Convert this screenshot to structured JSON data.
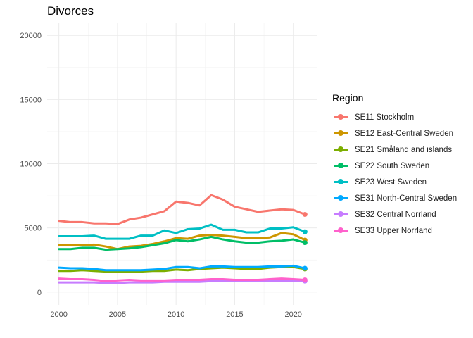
{
  "chart_data": {
    "type": "line",
    "title": "Divorces",
    "xlabel": "",
    "ylabel": "",
    "xlim": [
      2000,
      2021
    ],
    "ylim": [
      0,
      20000
    ],
    "x_ticks": [
      2000,
      2005,
      2010,
      2015,
      2020
    ],
    "y_ticks": [
      0,
      5000,
      10000,
      15000,
      20000
    ],
    "grid": true,
    "legend_title": "Region",
    "legend_position": "right",
    "x": [
      2000,
      2001,
      2002,
      2003,
      2004,
      2005,
      2006,
      2007,
      2008,
      2009,
      2010,
      2011,
      2012,
      2013,
      2014,
      2015,
      2016,
      2017,
      2018,
      2019,
      2020,
      2021
    ],
    "series": [
      {
        "name": "SE11 Stockholm",
        "color": "#F8766D",
        "values": [
          5550,
          5450,
          5450,
          5350,
          5350,
          5300,
          5650,
          5800,
          6050,
          6300,
          7050,
          6950,
          6750,
          7550,
          7200,
          6650,
          6450,
          6250,
          6350,
          6450,
          6400,
          6050
        ]
      },
      {
        "name": "SE12 East-Central Sweden",
        "color": "#CD9600",
        "values": [
          3650,
          3650,
          3650,
          3700,
          3550,
          3350,
          3550,
          3600,
          3750,
          3950,
          4200,
          4150,
          4400,
          4450,
          4400,
          4300,
          4200,
          4200,
          4250,
          4600,
          4500,
          4050
        ]
      },
      {
        "name": "SE21 Småland and islands",
        "color": "#7CAE00",
        "values": [
          1650,
          1650,
          1700,
          1650,
          1600,
          1600,
          1600,
          1600,
          1650,
          1650,
          1750,
          1700,
          1800,
          1850,
          1900,
          1850,
          1800,
          1800,
          1900,
          1950,
          1950,
          1800
        ]
      },
      {
        "name": "SE22 South Sweden",
        "color": "#00BE67",
        "values": [
          3350,
          3350,
          3450,
          3450,
          3300,
          3350,
          3400,
          3500,
          3650,
          3800,
          4050,
          3950,
          4100,
          4300,
          4100,
          3950,
          3850,
          3850,
          3950,
          4000,
          4100,
          3850
        ]
      },
      {
        "name": "SE23 West Sweden",
        "color": "#00BFC4",
        "values": [
          4350,
          4350,
          4350,
          4400,
          4150,
          4150,
          4150,
          4400,
          4400,
          4800,
          4600,
          4900,
          4950,
          5250,
          4850,
          4850,
          4650,
          4650,
          4950,
          4950,
          5050,
          4700
        ]
      },
      {
        "name": "SE31 North-Central Sweden",
        "color": "#00A9FF",
        "values": [
          1900,
          1850,
          1850,
          1800,
          1700,
          1700,
          1700,
          1700,
          1750,
          1800,
          1950,
          1950,
          1850,
          2000,
          2000,
          1950,
          1950,
          1950,
          2000,
          2000,
          2050,
          1850
        ]
      },
      {
        "name": "SE32 Central Norrland",
        "color": "#C77CFF",
        "values": [
          750,
          750,
          750,
          750,
          700,
          700,
          750,
          750,
          750,
          800,
          800,
          800,
          800,
          850,
          850,
          850,
          850,
          850,
          850,
          850,
          850,
          850
        ]
      },
      {
        "name": "SE33 Upper Norrland",
        "color": "#FF61CC",
        "values": [
          1050,
          1000,
          1000,
          950,
          850,
          900,
          950,
          900,
          900,
          900,
          950,
          950,
          950,
          1000,
          1000,
          950,
          950,
          950,
          1000,
          1050,
          1000,
          950
        ]
      }
    ]
  }
}
